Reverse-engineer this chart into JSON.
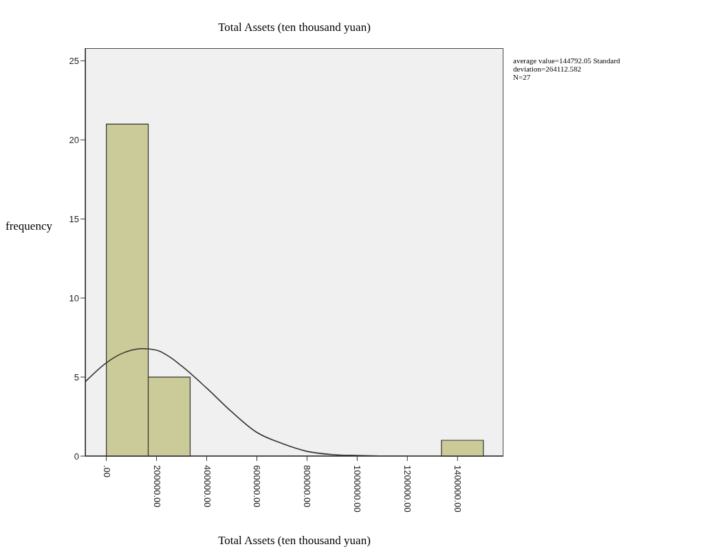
{
  "chart_data": {
    "type": "histogram",
    "title": "Total Assets (ten thousand yuan)",
    "xlabel": "Total Assets (ten thousand yuan)",
    "ylabel": "frequency",
    "bins": [
      0,
      167000,
      334000,
      501000,
      668000,
      835000,
      1002000,
      1169000,
      1336000,
      1503000
    ],
    "values": [
      21,
      5,
      0,
      0,
      0,
      0,
      0,
      0,
      1
    ],
    "color": "#cbcb99",
    "series": [
      {
        "type": "line",
        "color": "#333333",
        "x": [
          -84000,
          0,
          50000,
          100000,
          144792,
          200000,
          250000,
          300000,
          400000,
          500000,
          600000,
          700000,
          800000,
          900000,
          1000000,
          1100000,
          1200000
        ],
        "values": [
          4.7,
          5.9,
          6.4,
          6.7,
          6.8,
          6.7,
          6.3,
          5.7,
          4.3,
          2.8,
          1.5,
          0.8,
          0.3,
          0.1,
          0.04,
          0.01,
          0
        ]
      }
    ],
    "xlim": [
      -84000,
      1583000
    ],
    "xticks": [
      {
        "value": 0,
        "label": ".00"
      },
      {
        "value": 200000,
        "label": "200000.00"
      },
      {
        "value": 400000,
        "label": "400000.00"
      },
      {
        "value": 600000,
        "label": "600000.00"
      },
      {
        "value": 800000,
        "label": "800000.00"
      },
      {
        "value": 1000000,
        "label": "1000000.00"
      },
      {
        "value": 1200000,
        "label": "1200000.00"
      },
      {
        "value": 1400000,
        "label": "1400000.00"
      }
    ],
    "ylim": [
      0,
      25.8
    ],
    "yticks": [
      0,
      5,
      10,
      15,
      20,
      25
    ],
    "annotations": [
      "average value=144792.05 Standard deviation=264112.582",
      "N=27"
    ],
    "grid": false
  }
}
